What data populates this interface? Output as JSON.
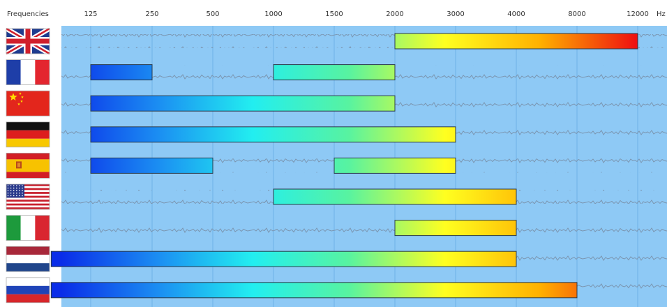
{
  "chart_data": {
    "type": "bar",
    "header_label": "Frequencies",
    "unit": "Hz",
    "ticks": [
      125,
      250,
      500,
      1000,
      1500,
      2000,
      3000,
      4000,
      8000,
      12000
    ],
    "tick_labels": [
      "125",
      "250",
      "500",
      "1000",
      "1500",
      "2000",
      "3000",
      "4000",
      "8000",
      "12000"
    ],
    "grid": true,
    "rows": [
      {
        "flag": "united-kingdom-flag",
        "ranges": [
          [
            2000,
            12000
          ]
        ]
      },
      {
        "flag": "france-flag",
        "ranges": [
          [
            125,
            250
          ],
          [
            1000,
            2000
          ]
        ]
      },
      {
        "flag": "china-flag",
        "ranges": [
          [
            125,
            2000
          ]
        ]
      },
      {
        "flag": "germany-flag",
        "ranges": [
          [
            125,
            3000
          ]
        ]
      },
      {
        "flag": "spain-flag",
        "ranges": [
          [
            125,
            500
          ],
          [
            1500,
            3000
          ]
        ]
      },
      {
        "flag": "united-states-flag",
        "ranges": [
          [
            1000,
            4000
          ]
        ]
      },
      {
        "flag": "italy-flag",
        "ranges": [
          [
            2000,
            4000
          ]
        ]
      },
      {
        "flag": "netherlands-flag",
        "ranges": [
          [
            80,
            4000
          ]
        ]
      },
      {
        "flag": "russia-flag",
        "ranges": [
          [
            80,
            8000
          ]
        ]
      }
    ],
    "colors": {
      "background": "#8ec9f5",
      "grid": "#6eb1e6",
      "waveform": "#7a95b0",
      "gradient": [
        "#0a2de8",
        "#1b8df2",
        "#22eef0",
        "#58f3a0",
        "#ffff20",
        "#ffb000",
        "#ee1010"
      ]
    }
  }
}
